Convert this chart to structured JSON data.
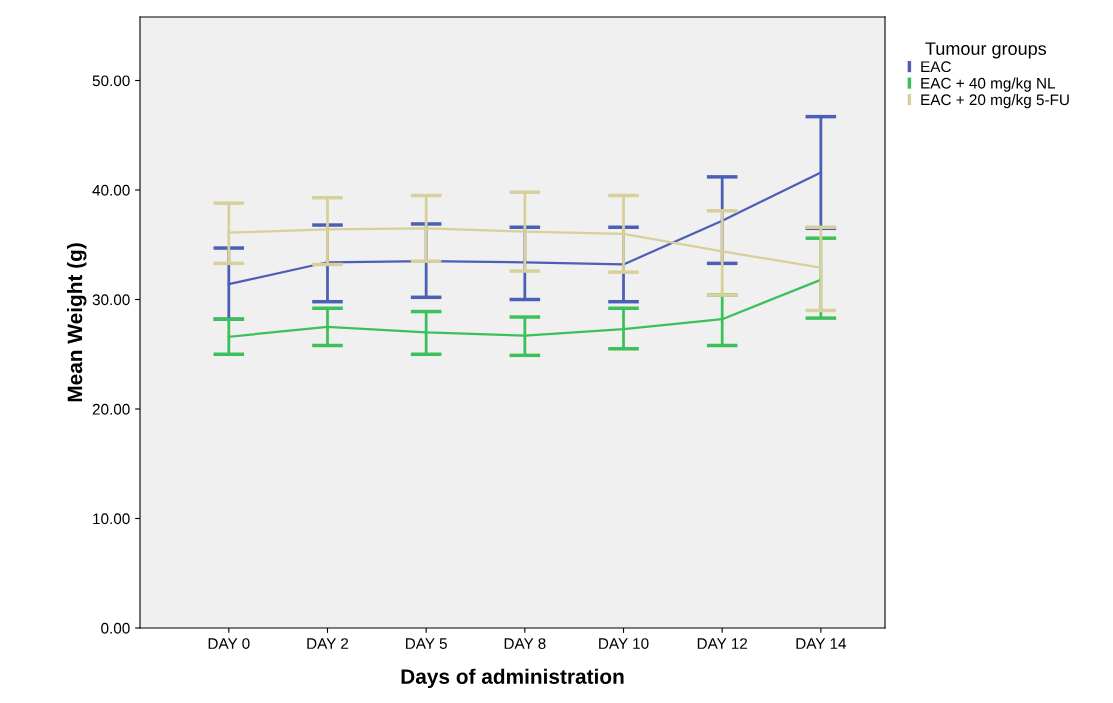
{
  "chart_data": {
    "type": "line",
    "xlabel": "Days of administration",
    "ylabel": "Mean Weight (g)",
    "legend_title": "Tumour groups",
    "legend": "top right",
    "grid": false,
    "marker": "none",
    "line_style": "solid",
    "categories": [
      "DAY 0",
      "DAY 2",
      "DAY 5",
      "DAY 8",
      "DAY 10",
      "DAY 12",
      "DAY 14"
    ],
    "ylim": [
      0,
      55.8
    ],
    "yticks": [
      {
        "value": 0,
        "label": "0.00"
      },
      {
        "value": 10,
        "label": "10.00"
      },
      {
        "value": 20,
        "label": "20.00"
      },
      {
        "value": 30,
        "label": "30.00"
      },
      {
        "value": 40,
        "label": "40.00"
      },
      {
        "value": 50,
        "label": "50.00"
      }
    ],
    "series": [
      {
        "name": "EAC",
        "color": "#4a5fb5",
        "values": [
          31.4,
          33.4,
          33.5,
          33.4,
          33.2,
          37.2,
          41.6
        ],
        "errors": [
          [
            28.2,
            34.7
          ],
          [
            29.8,
            36.8
          ],
          [
            30.2,
            36.9
          ],
          [
            30.0,
            36.6
          ],
          [
            29.8,
            36.6
          ],
          [
            33.3,
            41.2
          ],
          [
            36.5,
            46.7
          ]
        ]
      },
      {
        "name": "EAC + 40 mg/kg NL",
        "color": "#3cc05a",
        "values": [
          26.6,
          27.5,
          27.0,
          26.7,
          27.3,
          28.2,
          31.8
        ],
        "errors": [
          [
            25.0,
            28.2
          ],
          [
            25.8,
            29.2
          ],
          [
            25.0,
            28.9
          ],
          [
            24.9,
            28.4
          ],
          [
            25.5,
            29.2
          ],
          [
            25.8,
            30.4
          ],
          [
            28.3,
            35.6
          ]
        ]
      },
      {
        "name": "EAC + 20 mg/kg 5-FU",
        "color": "#d8d09a",
        "values": [
          36.1,
          36.4,
          36.5,
          36.2,
          36.0,
          34.4,
          32.9
        ],
        "errors": [
          [
            33.3,
            38.8
          ],
          [
            33.2,
            39.3
          ],
          [
            33.5,
            39.5
          ],
          [
            32.6,
            39.8
          ],
          [
            32.5,
            39.5
          ],
          [
            30.4,
            38.1
          ],
          [
            29.0,
            36.6
          ]
        ]
      }
    ]
  }
}
